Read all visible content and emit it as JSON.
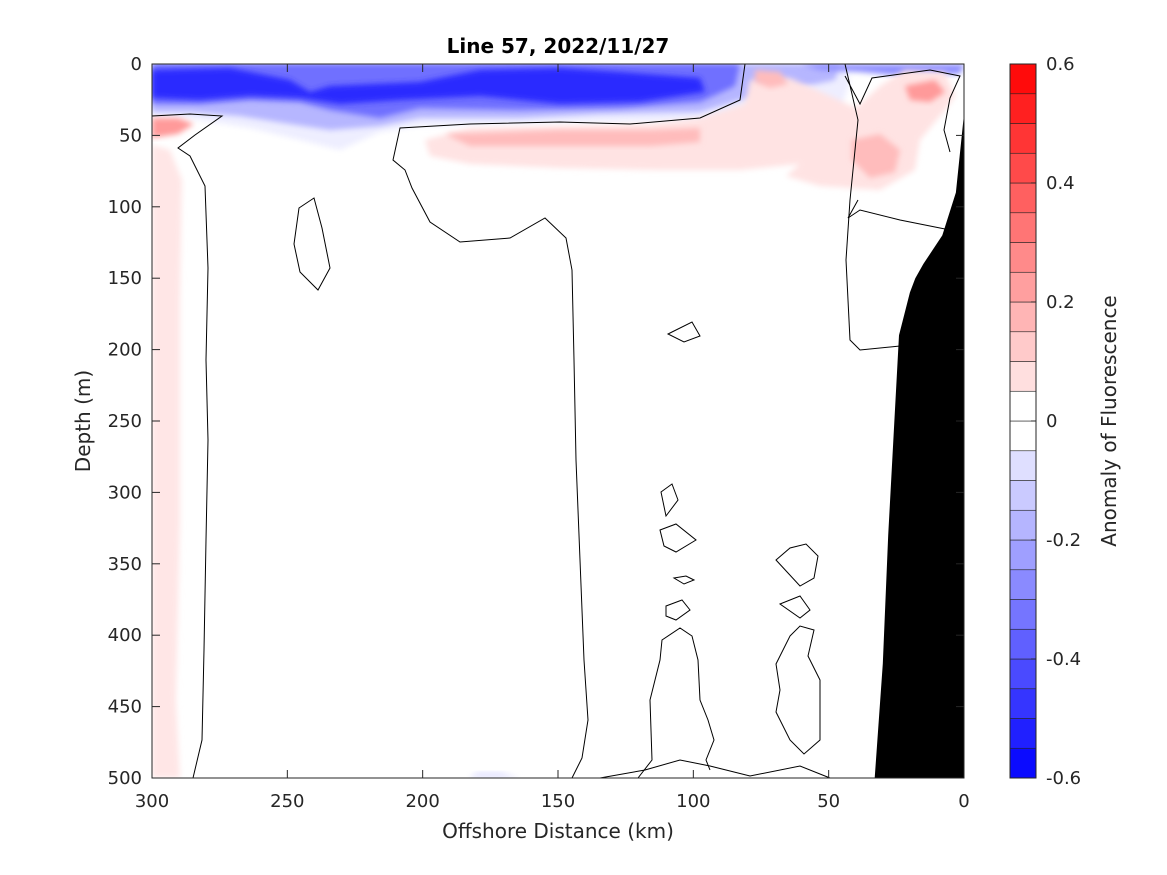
{
  "chart_data": {
    "type": "heatmap",
    "subtype": "filled-contour section",
    "title": "Line 57, 2022/11/27",
    "xlabel": "Offshore Distance (km)",
    "ylabel": "Depth (m)",
    "xlim": [
      300,
      0
    ],
    "ylim": [
      500,
      0
    ],
    "x_reversed": true,
    "y_reversed": true,
    "x_ticks": [
      300,
      250,
      200,
      150,
      100,
      50,
      0
    ],
    "y_ticks": [
      0,
      50,
      100,
      150,
      200,
      250,
      300,
      350,
      400,
      450,
      500
    ],
    "grid": false,
    "colorbar": {
      "label": "Anomaly of Fluorescence",
      "limits": [
        -0.6,
        0.6
      ],
      "levels": [
        -0.6,
        -0.55,
        -0.5,
        -0.45,
        -0.4,
        -0.35,
        -0.3,
        -0.25,
        -0.2,
        -0.15,
        -0.1,
        -0.05,
        0,
        0.05,
        0.1,
        0.15,
        0.2,
        0.25,
        0.3,
        0.35,
        0.4,
        0.45,
        0.5,
        0.55,
        0.6
      ],
      "ticks": [
        -0.6,
        -0.4,
        -0.2,
        0,
        0.2,
        0.4,
        0.6
      ],
      "tick_labels": [
        "-0.6",
        "-0.4",
        "-0.2",
        "0",
        "0.2",
        "0.4",
        "0.6"
      ],
      "colormap": "blue-white-red diverging"
    },
    "features": [
      {
        "kind": "negative anomaly",
        "x_range": [
          300,
          40
        ],
        "depth_range": [
          0,
          45
        ],
        "min_value": -0.55
      },
      {
        "kind": "positive anomaly",
        "x_range": [
          130,
          0
        ],
        "depth_range": [
          5,
          90
        ],
        "max_value": 0.2
      },
      {
        "kind": "positive anomaly",
        "x_range": [
          300,
          285
        ],
        "depth_range": [
          40,
          500
        ],
        "max_value": 0.05
      },
      {
        "kind": "seafloor",
        "color": "#000000",
        "x_at_500m": 33,
        "x_at_35m": 0
      }
    ],
    "bathymetry": [
      [
        33,
        500
      ],
      [
        30,
        420
      ],
      [
        28,
        330
      ],
      [
        26,
        260
      ],
      [
        24,
        190
      ],
      [
        20,
        160
      ],
      [
        18,
        150
      ],
      [
        15,
        140
      ],
      [
        8,
        120
      ],
      [
        3,
        90
      ],
      [
        0,
        35
      ]
    ]
  }
}
